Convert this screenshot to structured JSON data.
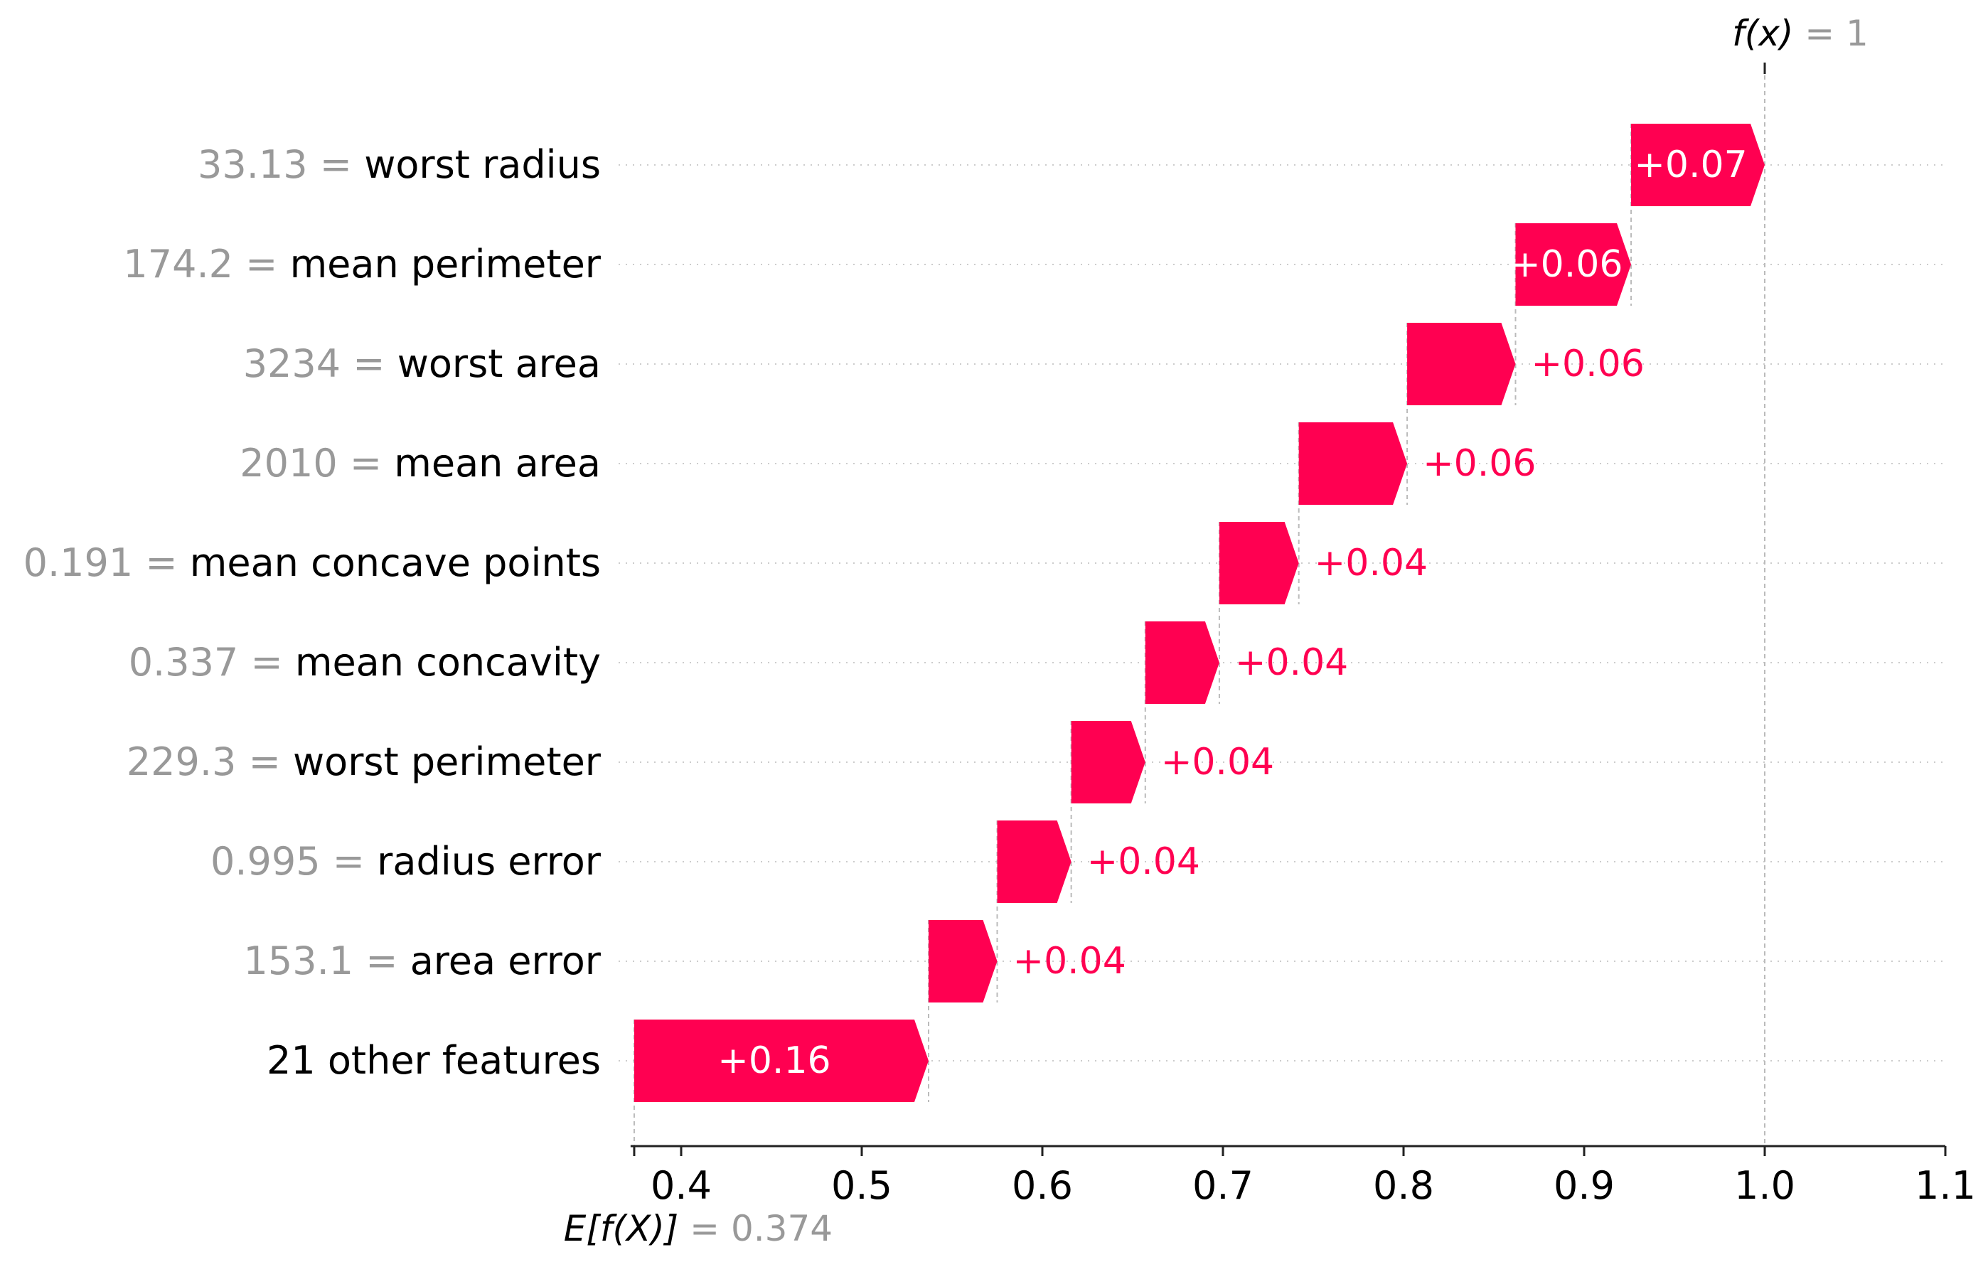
{
  "chart_data": {
    "type": "waterfall",
    "xlim": [
      0.372,
      1.1
    ],
    "x_ticks": [
      0.4,
      0.5,
      0.6,
      0.7,
      0.8,
      0.9,
      1.0,
      1.1
    ],
    "x_tick_labels": [
      "0.4",
      "0.5",
      "0.6",
      "0.7",
      "0.8",
      "0.9",
      "1.0",
      "1.1"
    ],
    "base_value": 0.374,
    "base_label": {
      "expr": "E[f(X)]",
      "value": "0.374"
    },
    "output_value": 1,
    "output_label": {
      "expr": "f(x)",
      "value": "1"
    },
    "features": [
      {
        "value": "33.13",
        "name": "worst radius",
        "contribution": 0.07,
        "label": "+0.07",
        "start": 0.926,
        "end": 1.0
      },
      {
        "value": "174.2",
        "name": "mean perimeter",
        "contribution": 0.06,
        "label": "+0.06",
        "start": 0.862,
        "end": 0.926
      },
      {
        "value": "3234",
        "name": "worst area",
        "contribution": 0.06,
        "label": "+0.06",
        "start": 0.802,
        "end": 0.862
      },
      {
        "value": "2010",
        "name": "mean area",
        "contribution": 0.06,
        "label": "+0.06",
        "start": 0.742,
        "end": 0.802
      },
      {
        "value": "0.191",
        "name": "mean concave points",
        "contribution": 0.04,
        "label": "+0.04",
        "start": 0.698,
        "end": 0.742
      },
      {
        "value": "0.337",
        "name": "mean concavity",
        "contribution": 0.04,
        "label": "+0.04",
        "start": 0.657,
        "end": 0.698
      },
      {
        "value": "229.3",
        "name": "worst perimeter",
        "contribution": 0.04,
        "label": "+0.04",
        "start": 0.616,
        "end": 0.657
      },
      {
        "value": "0.995",
        "name": "radius error",
        "contribution": 0.04,
        "label": "+0.04",
        "start": 0.575,
        "end": 0.616
      },
      {
        "value": "153.1",
        "name": "area error",
        "contribution": 0.04,
        "label": "+0.04",
        "start": 0.537,
        "end": 0.575
      },
      {
        "value": "",
        "name": "21 other features",
        "contribution": 0.16,
        "label": "+0.16",
        "start": 0.374,
        "end": 0.537
      }
    ],
    "colors": {
      "positive": "#ff0051",
      "value_text": "#999999",
      "grid": "#cccccc",
      "connector": "#bbbbbb"
    },
    "grid": true
  }
}
